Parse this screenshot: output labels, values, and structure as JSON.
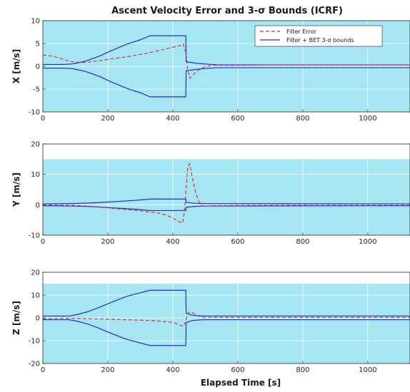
{
  "title": "Ascent Velocity Error and 3-σ Bounds (ICRF)",
  "xlabel": "Elapsed Time [s]",
  "legend": {
    "error_label": "Filter Error",
    "bounds_label": "Filter + BET 3-σ bounds"
  },
  "colors": {
    "background": "#a6e5f2",
    "error": "#d92b2b",
    "bounds": "#1f2fd6",
    "grid": "#ffffff",
    "axes": "#262626"
  },
  "chart_data": [
    {
      "type": "line",
      "ylabel": "X [m/s]",
      "xlim": [
        0,
        1130
      ],
      "ylim": [
        -10,
        10
      ],
      "xticks": [
        0,
        200,
        400,
        600,
        800,
        1000
      ],
      "yticks": [
        -10,
        -5,
        0,
        5,
        10
      ],
      "grid": true,
      "legend_position": "top-right",
      "series": [
        {
          "name": "Filter Error",
          "style": "dashed",
          "x": [
            0,
            30,
            60,
            90,
            120,
            150,
            180,
            210,
            240,
            270,
            300,
            330,
            360,
            390,
            420,
            432,
            440,
            446,
            452,
            460,
            470,
            480,
            490,
            500,
            520,
            560,
            600,
            700,
            800,
            900,
            1000,
            1130
          ],
          "y": [
            2.5,
            2.2,
            1.6,
            1.0,
            0.8,
            1.0,
            1.3,
            1.6,
            1.9,
            2.2,
            2.6,
            3.0,
            3.5,
            4.0,
            4.5,
            4.9,
            3.0,
            -0.6,
            -2.6,
            -2.1,
            -1.4,
            -0.8,
            -0.4,
            -0.1,
            0.2,
            0.2,
            0.2,
            0.3,
            0.3,
            0.3,
            0.3,
            0.3
          ]
        },
        {
          "name": "Filter + BET 3-σ bounds",
          "style": "solid",
          "x": [
            0,
            60,
            90,
            110,
            130,
            150,
            180,
            200,
            230,
            260,
            300,
            330,
            440,
            441,
            460,
            480,
            500,
            520,
            540,
            1130
          ],
          "y": [
            0.4,
            0.4,
            0.5,
            0.8,
            1.1,
            1.6,
            2.4,
            3.1,
            4.0,
            4.9,
            5.8,
            6.7,
            6.7,
            1.0,
            0.8,
            0.6,
            0.5,
            0.4,
            0.3,
            0.3
          ]
        }
      ]
    },
    {
      "type": "line",
      "ylabel": "Y [m/s]",
      "xlim": [
        0,
        1130
      ],
      "ylim": [
        -10,
        20
      ],
      "shade_range": [
        -10,
        15
      ],
      "xticks": [
        0,
        200,
        400,
        600,
        800,
        1000
      ],
      "yticks": [
        -10,
        0,
        10,
        20
      ],
      "grid": true,
      "series": [
        {
          "name": "Filter Error",
          "style": "dashed",
          "x": [
            0,
            100,
            150,
            200,
            250,
            300,
            350,
            380,
            400,
            420,
            430,
            436,
            440,
            446,
            452,
            460,
            470,
            480,
            490,
            500,
            520,
            600,
            800,
            1000,
            1130
          ],
          "y": [
            0,
            -0.2,
            -0.5,
            -1.0,
            -1.5,
            -2.0,
            -2.6,
            -3.4,
            -4.4,
            -5.6,
            -6.0,
            -2.0,
            4.0,
            12.5,
            13.5,
            9.0,
            4.0,
            1.0,
            -0.3,
            -0.5,
            -0.3,
            -0.2,
            -0.1,
            -0.1,
            -0.1
          ]
        },
        {
          "name": "Filter + BET 3-σ bounds",
          "style": "solid",
          "x": [
            0,
            90,
            150,
            200,
            260,
            300,
            330,
            440,
            441,
            470,
            500,
            1130
          ],
          "y": [
            0.3,
            0.4,
            0.6,
            0.9,
            1.3,
            1.6,
            1.9,
            1.9,
            0.8,
            0.5,
            0.4,
            0.3
          ]
        }
      ]
    },
    {
      "type": "line",
      "ylabel": "Z [m/s]",
      "xlim": [
        0,
        1130
      ],
      "ylim": [
        -20,
        20
      ],
      "shade_range": [
        -20,
        15
      ],
      "xticks": [
        0,
        200,
        400,
        600,
        800,
        1000
      ],
      "yticks": [
        -20,
        -10,
        0,
        10,
        20
      ],
      "grid": true,
      "series": [
        {
          "name": "Filter Error",
          "style": "dashed",
          "x": [
            0,
            60,
            100,
            150,
            200,
            250,
            300,
            350,
            400,
            420,
            432,
            440,
            446,
            452,
            460,
            470,
            480,
            490,
            520,
            600,
            800,
            1000,
            1130
          ],
          "y": [
            -0.4,
            -0.2,
            -0.2,
            -0.4,
            -0.6,
            -0.8,
            -1.0,
            -1.3,
            -2.0,
            -3.0,
            -3.8,
            -1.5,
            1.8,
            2.6,
            2.3,
            1.5,
            0.7,
            0.3,
            0.2,
            0.2,
            0.2,
            0.2,
            0.2
          ]
        },
        {
          "name": "Filter + BET 3-σ bounds",
          "style": "solid",
          "x": [
            0,
            80,
            110,
            140,
            170,
            200,
            230,
            260,
            300,
            330,
            440,
            441,
            460,
            480,
            500,
            1130
          ],
          "y": [
            0.8,
            0.8,
            1.6,
            2.8,
            4.4,
            6.2,
            7.9,
            9.5,
            11.0,
            12.1,
            12.1,
            2.0,
            1.2,
            0.9,
            0.8,
            0.8
          ]
        }
      ]
    }
  ]
}
